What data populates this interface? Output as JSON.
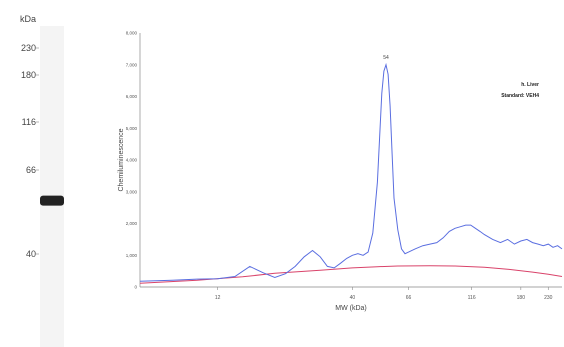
{
  "chart_data": [
    {
      "type": "gel-lane",
      "unit_label": "kDa",
      "markers": [
        "230",
        "180",
        "116",
        "66",
        "40"
      ],
      "band": {
        "kda": 55,
        "intensity": "strong"
      }
    },
    {
      "type": "line",
      "xlabel": "MW (kDa)",
      "ylabel": "Chemiluminescence",
      "xscale": "log",
      "xlim": [
        6,
        260
      ],
      "ylim": [
        0,
        8000
      ],
      "xticks": [
        "12",
        "40",
        "66",
        "116",
        "180",
        "230"
      ],
      "yticks": [
        "0",
        "1,000",
        "2,000",
        "3,000",
        "4,000",
        "5,000",
        "6,000",
        "7,000",
        "8,000"
      ],
      "peak_label": {
        "text": "54",
        "x": 54,
        "y": 7000
      },
      "legend": [
        "h. Liver",
        "Standard: VEH4"
      ],
      "legend_placement": "top-right",
      "colors": {
        "signal": "#5a6ee0",
        "baseline": "#d9436a",
        "axis": "#888888",
        "gel": "#f4f4f4",
        "band": "#222222"
      },
      "series": [
        {
          "role": "signal",
          "x": [
            6,
            8,
            10,
            12,
            14,
            16,
            18,
            20,
            22,
            24,
            26,
            28,
            30,
            32,
            34,
            36,
            38,
            40,
            42,
            44,
            46,
            48,
            50,
            51,
            52,
            53,
            54,
            55,
            56,
            57,
            58,
            60,
            62,
            64,
            66,
            70,
            75,
            80,
            85,
            90,
            95,
            100,
            105,
            110,
            115,
            120,
            125,
            130,
            140,
            150,
            160,
            170,
            180,
            190,
            200,
            210,
            220,
            230,
            240,
            250,
            260
          ],
          "y": [
            180,
            210,
            250,
            260,
            330,
            650,
            450,
            300,
            420,
            650,
            950,
            1150,
            950,
            650,
            600,
            750,
            900,
            1000,
            1050,
            1000,
            1100,
            1700,
            3300,
            4700,
            6100,
            6800,
            7000,
            6700,
            5700,
            4200,
            2800,
            1800,
            1200,
            1050,
            1100,
            1200,
            1300,
            1350,
            1400,
            1550,
            1750,
            1850,
            1900,
            1950,
            1950,
            1850,
            1750,
            1650,
            1500,
            1400,
            1500,
            1350,
            1450,
            1500,
            1400,
            1350,
            1300,
            1350,
            1250,
            1300,
            1200
          ]
        },
        {
          "role": "baseline",
          "x": [
            6,
            10,
            15,
            20,
            30,
            40,
            50,
            60,
            80,
            100,
            130,
            160,
            200,
            230,
            260
          ],
          "y": [
            120,
            210,
            320,
            430,
            530,
            600,
            640,
            660,
            670,
            660,
            620,
            560,
            470,
            400,
            330
          ]
        }
      ]
    }
  ]
}
